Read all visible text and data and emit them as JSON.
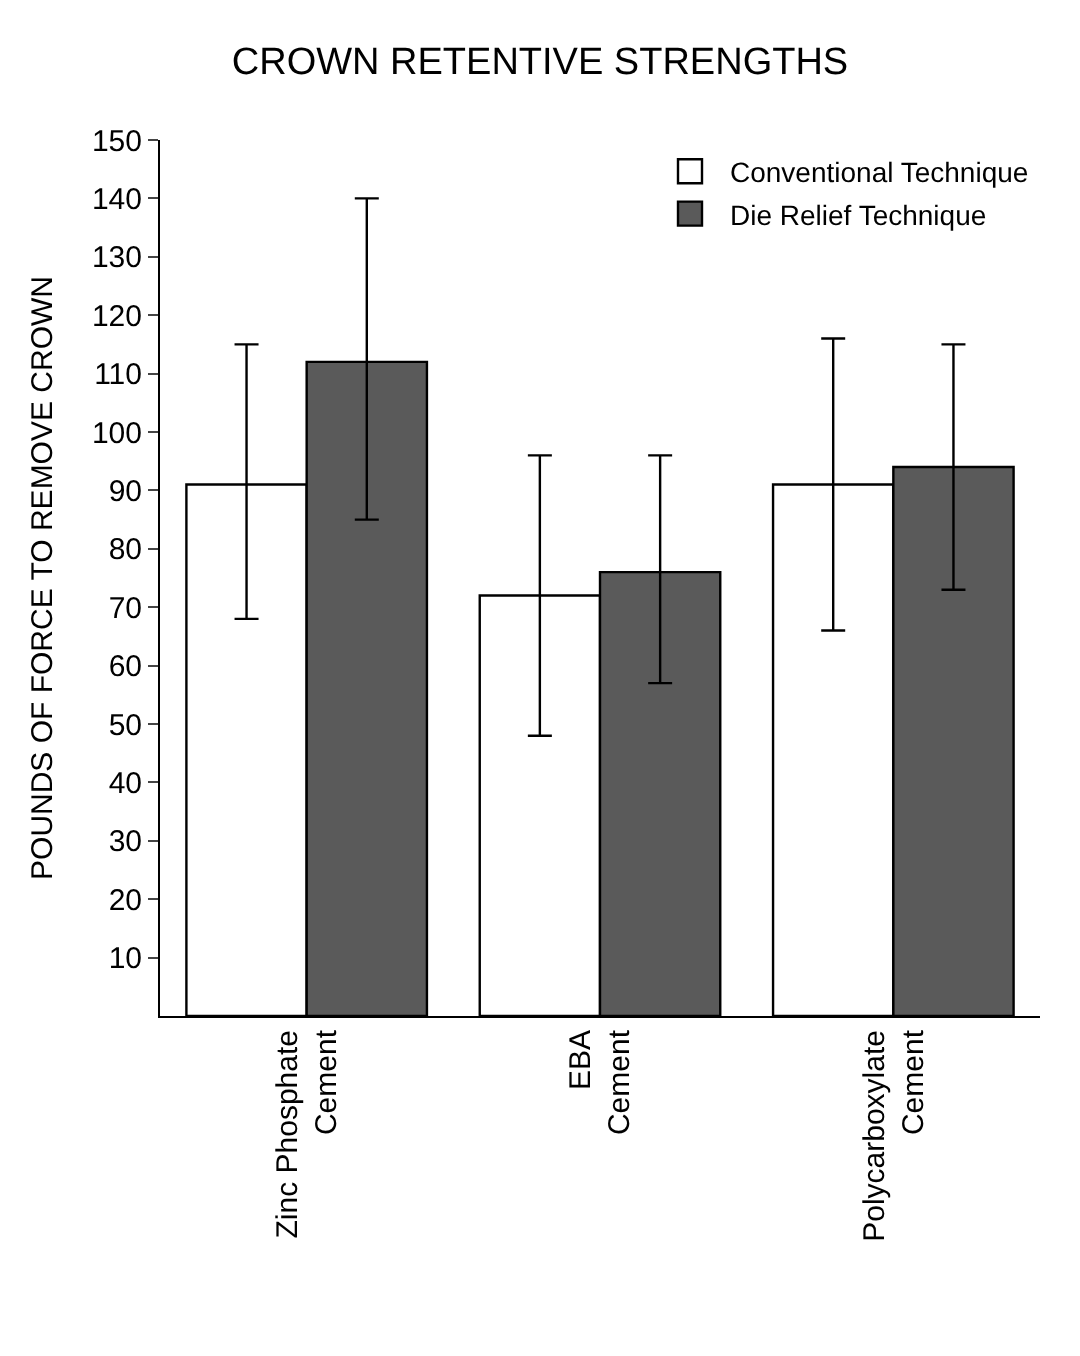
{
  "chart_data": {
    "type": "bar",
    "title": "CROWN RETENTIVE STRENGTHS",
    "ylabel": "POUNDS OF FORCE TO REMOVE CROWN",
    "categories": [
      "Zinc Phosphate\nCement",
      "EBA\nCement",
      "Polycarboxylate\nCement"
    ],
    "series": [
      {
        "name": "Conventional Technique",
        "color": "#ffffff",
        "values": [
          91,
          72,
          91
        ],
        "errors": [
          [
            68,
            115
          ],
          [
            48,
            96
          ],
          [
            66,
            116
          ]
        ]
      },
      {
        "name": "Die Relief Technique",
        "color": "#5a5a5a",
        "values": [
          112,
          76,
          94
        ],
        "errors": [
          [
            85,
            140
          ],
          [
            57,
            96
          ],
          [
            73,
            115
          ]
        ]
      }
    ],
    "ylim": [
      0,
      150
    ],
    "yticks": [
      10,
      20,
      30,
      40,
      50,
      60,
      70,
      80,
      90,
      100,
      110,
      120,
      130,
      140,
      150
    ],
    "legend": "top right"
  }
}
